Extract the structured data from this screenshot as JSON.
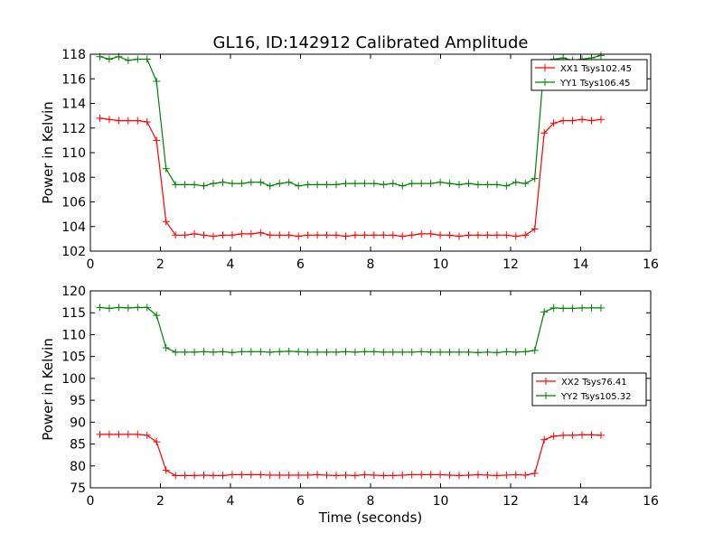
{
  "chart_data": [
    {
      "type": "line",
      "title": "GL16, ID:142912 Calibrated Amplitude",
      "xlabel": "",
      "ylabel": "Power in Kelvin",
      "xlim": [
        0,
        16
      ],
      "ylim": [
        102,
        118
      ],
      "xticks": [
        0,
        2,
        4,
        6,
        8,
        10,
        12,
        14,
        16
      ],
      "yticks": [
        102,
        104,
        106,
        108,
        110,
        112,
        114,
        116,
        118
      ],
      "legend_position": "top-right",
      "x": [
        0.27,
        0.54,
        0.81,
        1.08,
        1.35,
        1.62,
        1.89,
        2.16,
        2.43,
        2.7,
        2.97,
        3.24,
        3.51,
        3.78,
        4.05,
        4.32,
        4.59,
        4.86,
        5.13,
        5.4,
        5.67,
        5.94,
        6.21,
        6.48,
        6.75,
        7.02,
        7.29,
        7.56,
        7.83,
        8.1,
        8.37,
        8.64,
        8.91,
        9.18,
        9.45,
        9.72,
        9.99,
        10.26,
        10.53,
        10.8,
        11.07,
        11.34,
        11.61,
        11.88,
        12.15,
        12.42,
        12.69,
        12.96,
        13.23,
        13.5,
        13.77,
        14.04,
        14.31,
        14.58
      ],
      "series": [
        {
          "name": "XX1 Tsys102.45",
          "color": "#ff0000",
          "values": [
            112.8,
            112.7,
            112.6,
            112.6,
            112.6,
            112.5,
            111.0,
            104.4,
            103.3,
            103.3,
            103.4,
            103.3,
            103.2,
            103.3,
            103.3,
            103.4,
            103.4,
            103.5,
            103.3,
            103.3,
            103.3,
            103.2,
            103.3,
            103.3,
            103.3,
            103.3,
            103.2,
            103.3,
            103.3,
            103.3,
            103.3,
            103.3,
            103.2,
            103.3,
            103.4,
            103.4,
            103.3,
            103.3,
            103.2,
            103.3,
            103.3,
            103.3,
            103.3,
            103.3,
            103.2,
            103.3,
            103.8,
            111.6,
            112.4,
            112.6,
            112.6,
            112.7,
            112.6,
            112.7
          ]
        },
        {
          "name": "YY1 Tsys106.45",
          "color": "#008000",
          "values": [
            117.8,
            117.6,
            117.8,
            117.5,
            117.6,
            117.6,
            115.8,
            108.7,
            107.4,
            107.4,
            107.4,
            107.3,
            107.5,
            107.6,
            107.5,
            107.5,
            107.6,
            107.6,
            107.3,
            107.5,
            107.6,
            107.3,
            107.4,
            107.4,
            107.4,
            107.4,
            107.5,
            107.5,
            107.5,
            107.5,
            107.4,
            107.5,
            107.3,
            107.5,
            107.5,
            107.5,
            107.6,
            107.5,
            107.4,
            107.5,
            107.4,
            107.4,
            107.4,
            107.3,
            107.6,
            107.5,
            107.9,
            117.3,
            117.6,
            117.7,
            117.5,
            117.6,
            117.7,
            117.9
          ]
        }
      ]
    },
    {
      "type": "line",
      "title": "",
      "xlabel": "Time (seconds)",
      "ylabel": "Power in Kelvin",
      "xlim": [
        0,
        16
      ],
      "ylim": [
        75,
        120
      ],
      "xticks": [
        0,
        2,
        4,
        6,
        8,
        10,
        12,
        14,
        16
      ],
      "yticks": [
        75,
        80,
        85,
        90,
        95,
        100,
        105,
        110,
        115,
        120
      ],
      "legend_position": "center-right",
      "x": [
        0.27,
        0.54,
        0.81,
        1.08,
        1.35,
        1.62,
        1.89,
        2.16,
        2.43,
        2.7,
        2.97,
        3.24,
        3.51,
        3.78,
        4.05,
        4.32,
        4.59,
        4.86,
        5.13,
        5.4,
        5.67,
        5.94,
        6.21,
        6.48,
        6.75,
        7.02,
        7.29,
        7.56,
        7.83,
        8.1,
        8.37,
        8.64,
        8.91,
        9.18,
        9.45,
        9.72,
        9.99,
        10.26,
        10.53,
        10.8,
        11.07,
        11.34,
        11.61,
        11.88,
        12.15,
        12.42,
        12.69,
        12.96,
        13.23,
        13.5,
        13.77,
        14.04,
        14.31,
        14.58
      ],
      "series": [
        {
          "name": "XX2 Tsys76.41",
          "color": "#ff0000",
          "values": [
            87.2,
            87.2,
            87.2,
            87.2,
            87.2,
            87.0,
            85.5,
            79.0,
            77.8,
            77.8,
            77.8,
            77.9,
            77.8,
            77.8,
            78.0,
            78.0,
            78.0,
            78.0,
            77.9,
            77.9,
            77.9,
            77.9,
            77.9,
            78.0,
            77.9,
            77.8,
            77.9,
            77.8,
            78.0,
            77.9,
            77.8,
            77.8,
            77.9,
            78.0,
            78.0,
            78.0,
            78.0,
            77.9,
            77.8,
            77.9,
            78.0,
            77.9,
            77.8,
            77.9,
            78.0,
            77.9,
            78.3,
            86.0,
            86.8,
            87.0,
            87.0,
            87.1,
            87.1,
            87.0
          ]
        },
        {
          "name": "YY2 Tsys105.32",
          "color": "#008000",
          "values": [
            116.2,
            116.0,
            116.2,
            116.1,
            116.2,
            116.2,
            114.4,
            107.0,
            106.0,
            106.0,
            106.0,
            106.1,
            106.0,
            106.1,
            105.9,
            106.1,
            106.1,
            106.1,
            106.0,
            106.1,
            106.2,
            106.1,
            106.0,
            106.0,
            106.0,
            106.0,
            106.1,
            106.0,
            106.1,
            106.1,
            106.0,
            106.0,
            106.0,
            106.0,
            106.1,
            106.0,
            106.0,
            106.0,
            106.0,
            106.0,
            105.9,
            106.0,
            105.9,
            106.1,
            106.0,
            106.1,
            106.4,
            115.2,
            116.1,
            116.0,
            116.0,
            116.1,
            116.1,
            116.1
          ]
        }
      ]
    }
  ]
}
